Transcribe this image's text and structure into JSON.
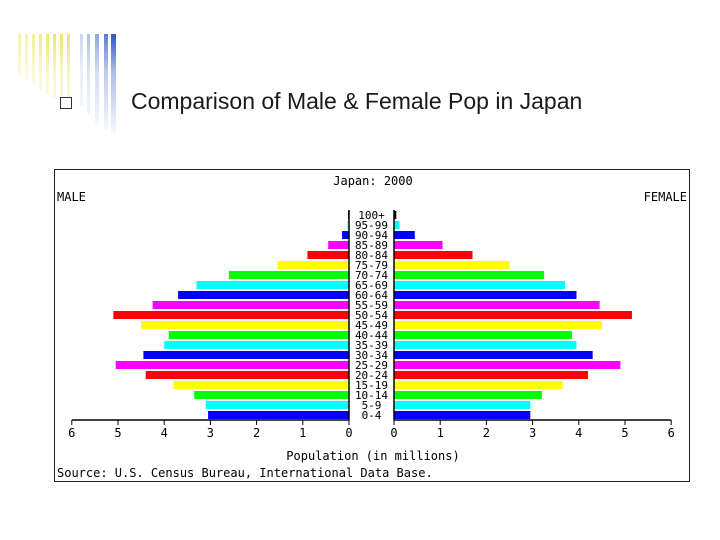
{
  "slide": {
    "title": "Comparison of Male & Female Pop in Japan"
  },
  "icons": {
    "bullet": "checkbox-square-icon"
  },
  "chart_data": {
    "type": "bar",
    "orientation": "horizontal-pyramid",
    "title": "Japan: 2000",
    "left_label": "MALE",
    "right_label": "FEMALE",
    "xlabel": "Population (in millions)",
    "source": "Source: U.S. Census Bureau, International Data Base.",
    "xlim": [
      0,
      6
    ],
    "x_ticks": [
      "0",
      "1",
      "2",
      "3",
      "4",
      "5",
      "6"
    ],
    "categories": [
      "100+",
      "95-99",
      "90-94",
      "85-89",
      "80-84",
      "75-79",
      "70-74",
      "65-69",
      "60-64",
      "55-59",
      "50-54",
      "45-49",
      "40-44",
      "35-39",
      "30-34",
      "25-29",
      "20-24",
      "15-19",
      "10-14",
      "5-9",
      "0-4"
    ],
    "colors": [
      "#000000",
      "#00ffff",
      "#0000ff",
      "#ff00ff",
      "#ff0000",
      "#ffff00",
      "#00ff00",
      "#00ffff",
      "#0000ff",
      "#ff00ff",
      "#ff0000",
      "#ffff00",
      "#00ff00",
      "#00ffff",
      "#0000ff",
      "#ff00ff",
      "#ff0000",
      "#ffff00",
      "#00ff00",
      "#00ffff",
      "#0000ff"
    ],
    "series": [
      {
        "name": "MALE",
        "values": [
          0.02,
          0.03,
          0.15,
          0.45,
          0.9,
          1.55,
          2.6,
          3.3,
          3.7,
          4.25,
          5.1,
          4.5,
          3.9,
          4.0,
          4.45,
          5.05,
          4.4,
          3.8,
          3.35,
          3.1,
          3.05
        ]
      },
      {
        "name": "FEMALE",
        "values": [
          0.05,
          0.12,
          0.45,
          1.05,
          1.7,
          2.5,
          3.25,
          3.7,
          3.95,
          4.45,
          5.15,
          4.5,
          3.85,
          3.95,
          4.3,
          4.9,
          4.2,
          3.65,
          3.2,
          2.95,
          2.95
        ]
      }
    ]
  }
}
